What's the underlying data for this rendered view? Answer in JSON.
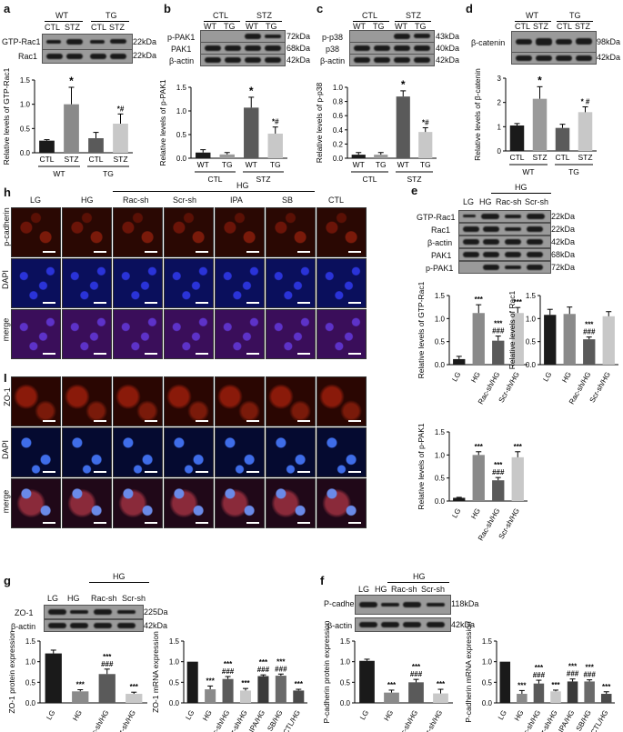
{
  "panels": {
    "a": {
      "label": "a",
      "groups": [
        "WT",
        "TG"
      ],
      "lanes": [
        "CTL",
        "STZ",
        "CTL",
        "STZ"
      ],
      "rows": [
        "GTP-Rac1",
        "Rac1"
      ],
      "kda": [
        "22kDa",
        "22kDa"
      ]
    },
    "b": {
      "label": "b",
      "groups": [
        "CTL",
        "STZ"
      ],
      "lanes": [
        "WT",
        "TG",
        "WT",
        "TG"
      ],
      "rows": [
        "p-PAK1",
        "PAK1",
        "β-actin"
      ],
      "kda": [
        "72kDa",
        "68kDa",
        "42kDa"
      ]
    },
    "c": {
      "label": "c",
      "groups": [
        "CTL",
        "STZ"
      ],
      "lanes": [
        "WT",
        "TG",
        "WT",
        "TG"
      ],
      "rows": [
        "p-p38",
        "p38",
        "β-actin"
      ],
      "kda": [
        "43kDa",
        "40kDa",
        "42kDa"
      ]
    },
    "d": {
      "label": "d",
      "groups": [
        "WT",
        "TG"
      ],
      "lanes": [
        "CTL",
        "STZ",
        "CTL",
        "STZ"
      ],
      "rows": [
        "β-catenin",
        ""
      ],
      "kda": [
        "98kDa",
        "42kDa"
      ]
    },
    "e": {
      "label": "e",
      "lanes": [
        "LG",
        "HG",
        "Rac-sh",
        "Scr-sh"
      ],
      "group": "HG",
      "rows": [
        "GTP-Rac1",
        "Rac1",
        "β-actin",
        "PAK1",
        "p-PAK1"
      ],
      "kda": [
        "22kDa",
        "22kDa",
        "42kDa",
        "68kDa",
        "72kDa"
      ]
    },
    "f": {
      "label": "f",
      "lanes": [
        "LG",
        "HG",
        "Rac-sh",
        "Scr-sh"
      ],
      "group": "HG",
      "rows": [
        "P-cadherin",
        "β-actin"
      ],
      "kda": [
        "118kDa",
        "42kDa"
      ]
    },
    "g": {
      "label": "g",
      "lanes": [
        "LG",
        "HG",
        "Rac-sh",
        "Scr-sh"
      ],
      "group": "HG",
      "rows": [
        "ZO-1",
        "β-actin"
      ],
      "kda": [
        "225Da",
        "42kDa"
      ]
    },
    "h": {
      "label": "h",
      "columns": [
        "LG",
        "HG",
        "Rac-sh",
        "Scr-sh",
        "IPA",
        "SB",
        "CTL"
      ],
      "group": "HG",
      "rows": [
        "p-cadherin",
        "DAPI",
        "merge"
      ]
    },
    "i": {
      "label": "I",
      "columns_count": 7,
      "rows": [
        "ZO-1",
        "DAPI",
        "merge"
      ]
    }
  },
  "chart_data": [
    {
      "type": "bar",
      "id": "a",
      "ylabel": "Relative levels of GTP-Rac1",
      "categories": [
        "CTL",
        "STZ",
        "CTL",
        "STZ"
      ],
      "groups": [
        "WT",
        "TG"
      ],
      "values": [
        0.25,
        1.0,
        0.3,
        0.6
      ],
      "errors": [
        0.02,
        0.35,
        0.12,
        0.2
      ],
      "marks": [
        "",
        "*",
        "",
        "*#"
      ],
      "yticks": [
        "0.0",
        "0.5",
        "1.0",
        "1.5"
      ],
      "ylim": [
        0,
        1.5
      ]
    },
    {
      "type": "bar",
      "id": "b",
      "ylabel": "Relative levels of p-PAK1",
      "categories": [
        "WT",
        "TG",
        "WT",
        "TG"
      ],
      "groups": [
        "CTL",
        "STZ"
      ],
      "values": [
        0.12,
        0.08,
        1.07,
        0.52
      ],
      "errors": [
        0.06,
        0.04,
        0.22,
        0.14
      ],
      "marks": [
        "",
        "",
        "*",
        "*#"
      ],
      "yticks": [
        "0.0",
        "0.5",
        "1.0",
        "1.5"
      ],
      "ylim": [
        0,
        1.5
      ]
    },
    {
      "type": "bar",
      "id": "c",
      "ylabel": "Relative levels of p-p38",
      "categories": [
        "WT",
        "TG",
        "WT",
        "TG"
      ],
      "groups": [
        "CTL",
        "STZ"
      ],
      "values": [
        0.05,
        0.05,
        0.87,
        0.37
      ],
      "errors": [
        0.03,
        0.03,
        0.08,
        0.06
      ],
      "marks": [
        "",
        "",
        "*",
        "*#"
      ],
      "yticks": [
        "0.0",
        "0.2",
        "0.4",
        "0.6",
        "0.8",
        "1.0"
      ],
      "ylim": [
        0,
        1.0
      ]
    },
    {
      "type": "bar",
      "id": "d",
      "ylabel": "Relative levels of β-catenin",
      "categories": [
        "CTL",
        "STZ",
        "CTL",
        "STZ"
      ],
      "groups": [
        "WT",
        "TG"
      ],
      "values": [
        1.05,
        2.15,
        0.95,
        1.6
      ],
      "errors": [
        0.08,
        0.5,
        0.15,
        0.22
      ],
      "marks": [
        "",
        "*",
        "",
        "* #"
      ],
      "yticks": [
        "0",
        "1",
        "2",
        "3"
      ],
      "ylim": [
        0,
        3
      ]
    },
    {
      "type": "bar",
      "id": "e1",
      "ylabel": "Relative levels of GTP-Rac1",
      "categories": [
        "LG",
        "HG",
        "Rac-sh/HG",
        "Scr-sh/HG"
      ],
      "values": [
        0.12,
        1.12,
        0.52,
        1.12
      ],
      "errors": [
        0.06,
        0.18,
        0.1,
        0.12
      ],
      "marks": [
        "",
        "***",
        "***\n###",
        "***"
      ],
      "yticks": [
        "0.0",
        "0.5",
        "1.0",
        "1.5"
      ],
      "ylim": [
        0,
        1.5
      ]
    },
    {
      "type": "bar",
      "id": "e2",
      "ylabel": "Relative levels of Rac1",
      "categories": [
        "LG",
        "HG",
        "Rac-sh/HG",
        "Scr-sh/HG"
      ],
      "values": [
        1.08,
        1.1,
        0.55,
        1.05
      ],
      "errors": [
        0.12,
        0.15,
        0.05,
        0.1
      ],
      "marks": [
        "",
        "",
        "***\n###",
        ""
      ],
      "yticks": [
        "0.0",
        "0.5",
        "1.0",
        "1.5"
      ],
      "ylim": [
        0,
        1.5
      ]
    },
    {
      "type": "bar",
      "id": "e3",
      "ylabel": "Relative levels of p-PAK1",
      "categories": [
        "LG",
        "HG",
        "Rac-sh/HG",
        "Scr-sh/HG"
      ],
      "values": [
        0.07,
        1.0,
        0.45,
        0.95
      ],
      "errors": [
        0.01,
        0.07,
        0.06,
        0.12
      ],
      "marks": [
        "",
        "***",
        "***\n###",
        "***"
      ],
      "yticks": [
        "0.0",
        "0.5",
        "1.0",
        "1.5"
      ],
      "ylim": [
        0,
        1.5
      ]
    },
    {
      "type": "bar",
      "id": "g1",
      "ylabel": "ZO-1 protein expression",
      "categories": [
        "LG",
        "HG",
        "Rac-sh/HG",
        "Scr-sh/HG"
      ],
      "values": [
        1.2,
        0.28,
        0.7,
        0.22
      ],
      "errors": [
        0.08,
        0.04,
        0.12,
        0.04
      ],
      "marks": [
        "",
        "***",
        "***\n###",
        "***"
      ],
      "yticks": [
        "0.0",
        "0.5",
        "1.0",
        "1.5"
      ],
      "ylim": [
        0,
        1.5
      ]
    },
    {
      "type": "bar",
      "id": "g2",
      "ylabel": "ZO-1 mRNA expression",
      "categories": [
        "LG",
        "HG",
        "Rac-sh/HG",
        "Scr-sh/HG",
        "IPA/HG",
        "SB/HG",
        "CTL/HG"
      ],
      "values": [
        1.0,
        0.33,
        0.58,
        0.3,
        0.65,
        0.66,
        0.3
      ],
      "errors": [
        0.0,
        0.08,
        0.06,
        0.05,
        0.03,
        0.04,
        0.03
      ],
      "marks": [
        "",
        "***",
        "***\n###",
        "***",
        "***\n###",
        "***\n###",
        "***"
      ],
      "yticks": [
        "0.0",
        "0.5",
        "1.0",
        "1.5"
      ],
      "ylim": [
        0,
        1.5
      ]
    },
    {
      "type": "bar",
      "id": "f1",
      "ylabel": "P-cadherin protein expression",
      "categories": [
        "LG",
        "HG",
        "Rac-sh/HG",
        "Scr-sh/HG"
      ],
      "values": [
        1.02,
        0.25,
        0.5,
        0.23
      ],
      "errors": [
        0.04,
        0.06,
        0.07,
        0.1
      ],
      "marks": [
        "",
        "***",
        "***\n###",
        "***"
      ],
      "yticks": [
        "0.0",
        "0.5",
        "1.0",
        "1.5"
      ],
      "ylim": [
        0,
        1.5
      ]
    },
    {
      "type": "bar",
      "id": "f2",
      "ylabel": "P-cadherin mRNA expression",
      "categories": [
        "LG",
        "HG",
        "Rac-sh/HG",
        "Scr-sh/HG",
        "IPA/HG",
        "SB/HG",
        "CTL/HG"
      ],
      "values": [
        1.0,
        0.22,
        0.47,
        0.28,
        0.52,
        0.52,
        0.22
      ],
      "errors": [
        0.0,
        0.08,
        0.08,
        0.03,
        0.06,
        0.04,
        0.05
      ],
      "marks": [
        "",
        "***",
        "***\n###",
        "***",
        "***\n###",
        "***\n###",
        "***"
      ],
      "yticks": [
        "0.0",
        "0.5",
        "1.0",
        "1.5"
      ],
      "ylim": [
        0,
        1.5
      ]
    }
  ]
}
